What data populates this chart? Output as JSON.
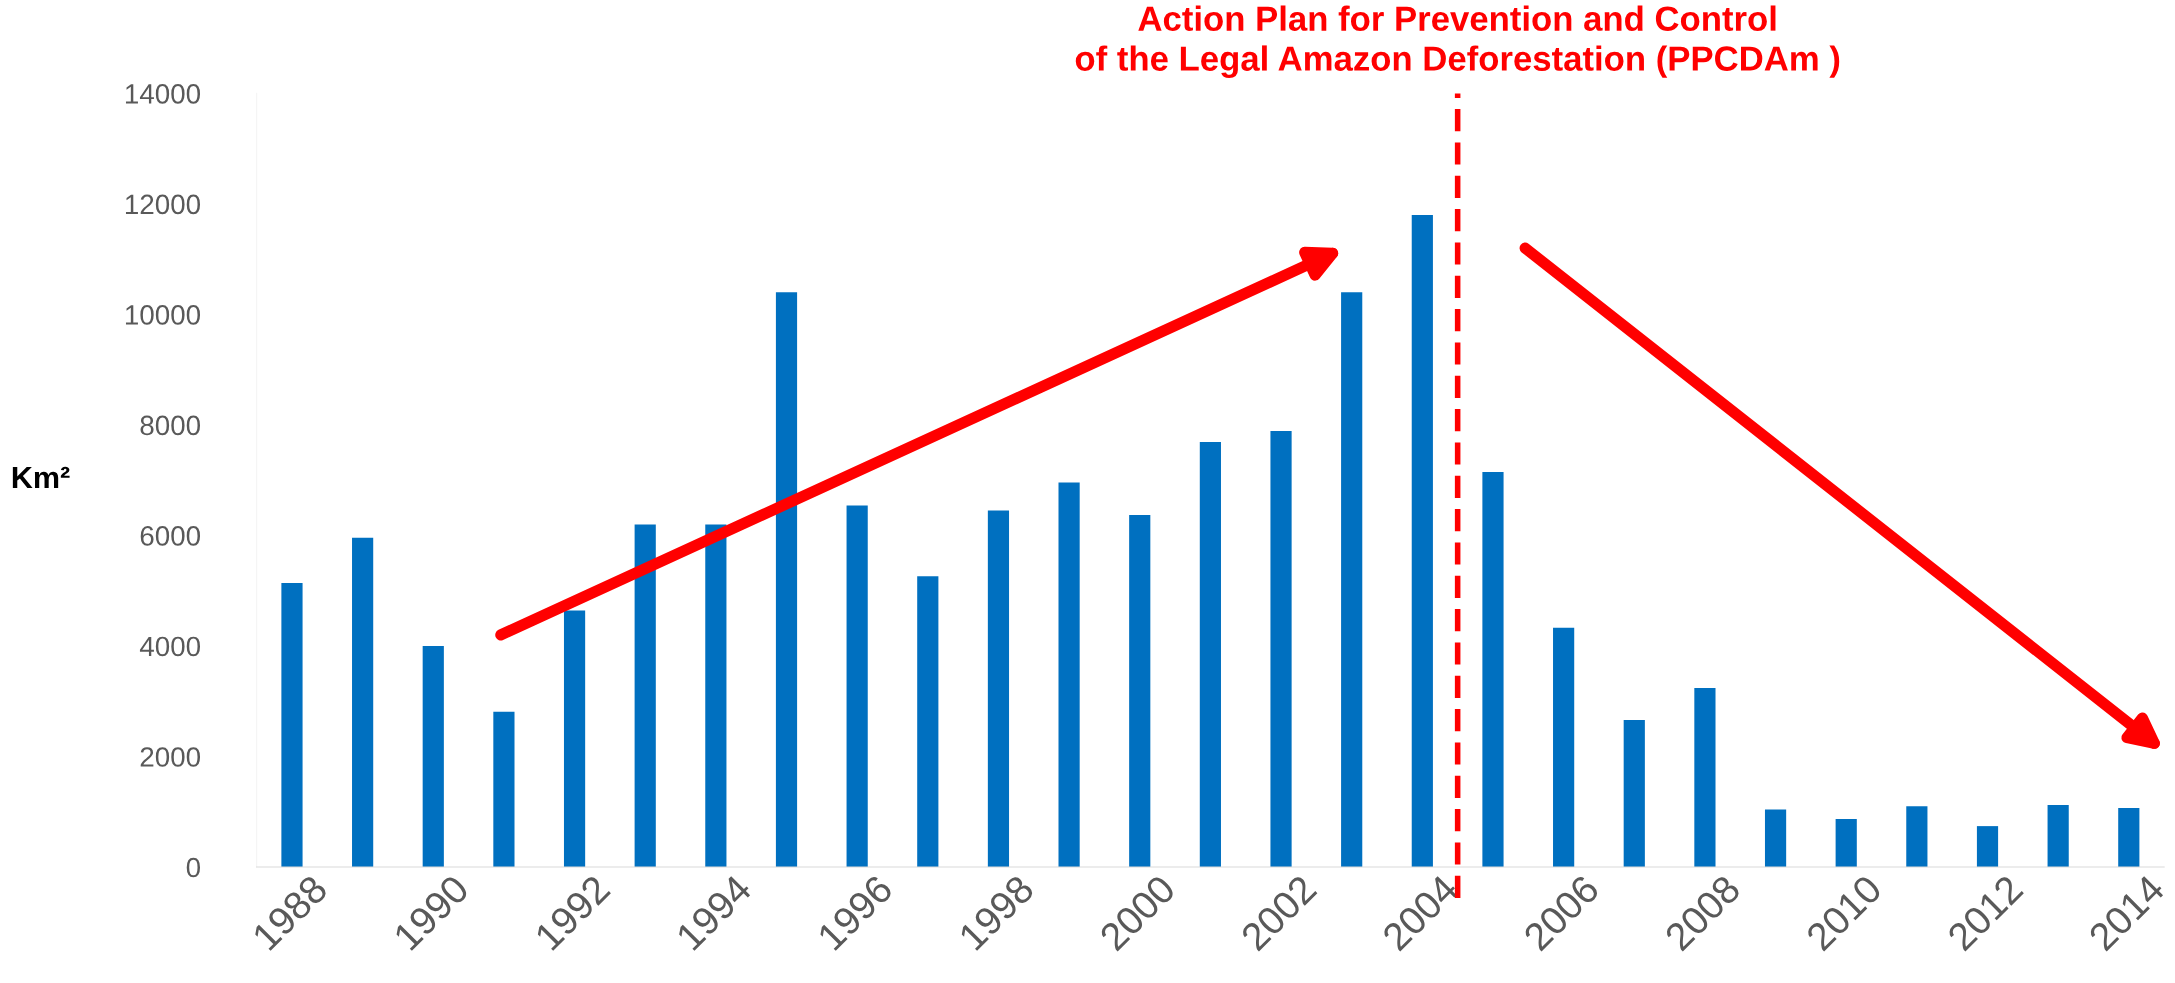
{
  "chart_data": {
    "type": "bar",
    "ylabel": "Km²",
    "color": "#0070c0",
    "x": [
      1988,
      1989,
      1990,
      1991,
      1992,
      1993,
      1994,
      1995,
      1996,
      1997,
      1998,
      1999,
      2000,
      2001,
      2002,
      2003,
      2004,
      2005,
      2006,
      2007,
      2008,
      2009,
      2010,
      2011,
      2012,
      2013,
      2014
    ],
    "values": [
      5140,
      5960,
      4000,
      2810,
      4640,
      6200,
      6200,
      10400,
      6540,
      5260,
      6450,
      6960,
      6370,
      7690,
      7890,
      10400,
      11800,
      7150,
      4330,
      2660,
      3240,
      1040,
      870,
      1100,
      740,
      1120,
      1070
    ],
    "xlim": [
      1987.5,
      2014.5
    ],
    "xticks": [
      1988,
      1990,
      1992,
      1994,
      1996,
      1998,
      2000,
      2002,
      2004,
      2006,
      2008,
      2010,
      2012,
      2014
    ],
    "ylim": [
      0,
      14000
    ],
    "yticks": [
      0,
      2000,
      4000,
      6000,
      8000,
      10000,
      12000,
      14000
    ],
    "ref_lines": [
      {
        "axis": "x",
        "value": 2004.5,
        "label": "Action Plan for Prevention and Control\nof the Legal Amazon Deforestation (PPCDAm )",
        "color": "#ff0000",
        "line_style": "dashed"
      }
    ],
    "grid": false,
    "legend": false
  }
}
